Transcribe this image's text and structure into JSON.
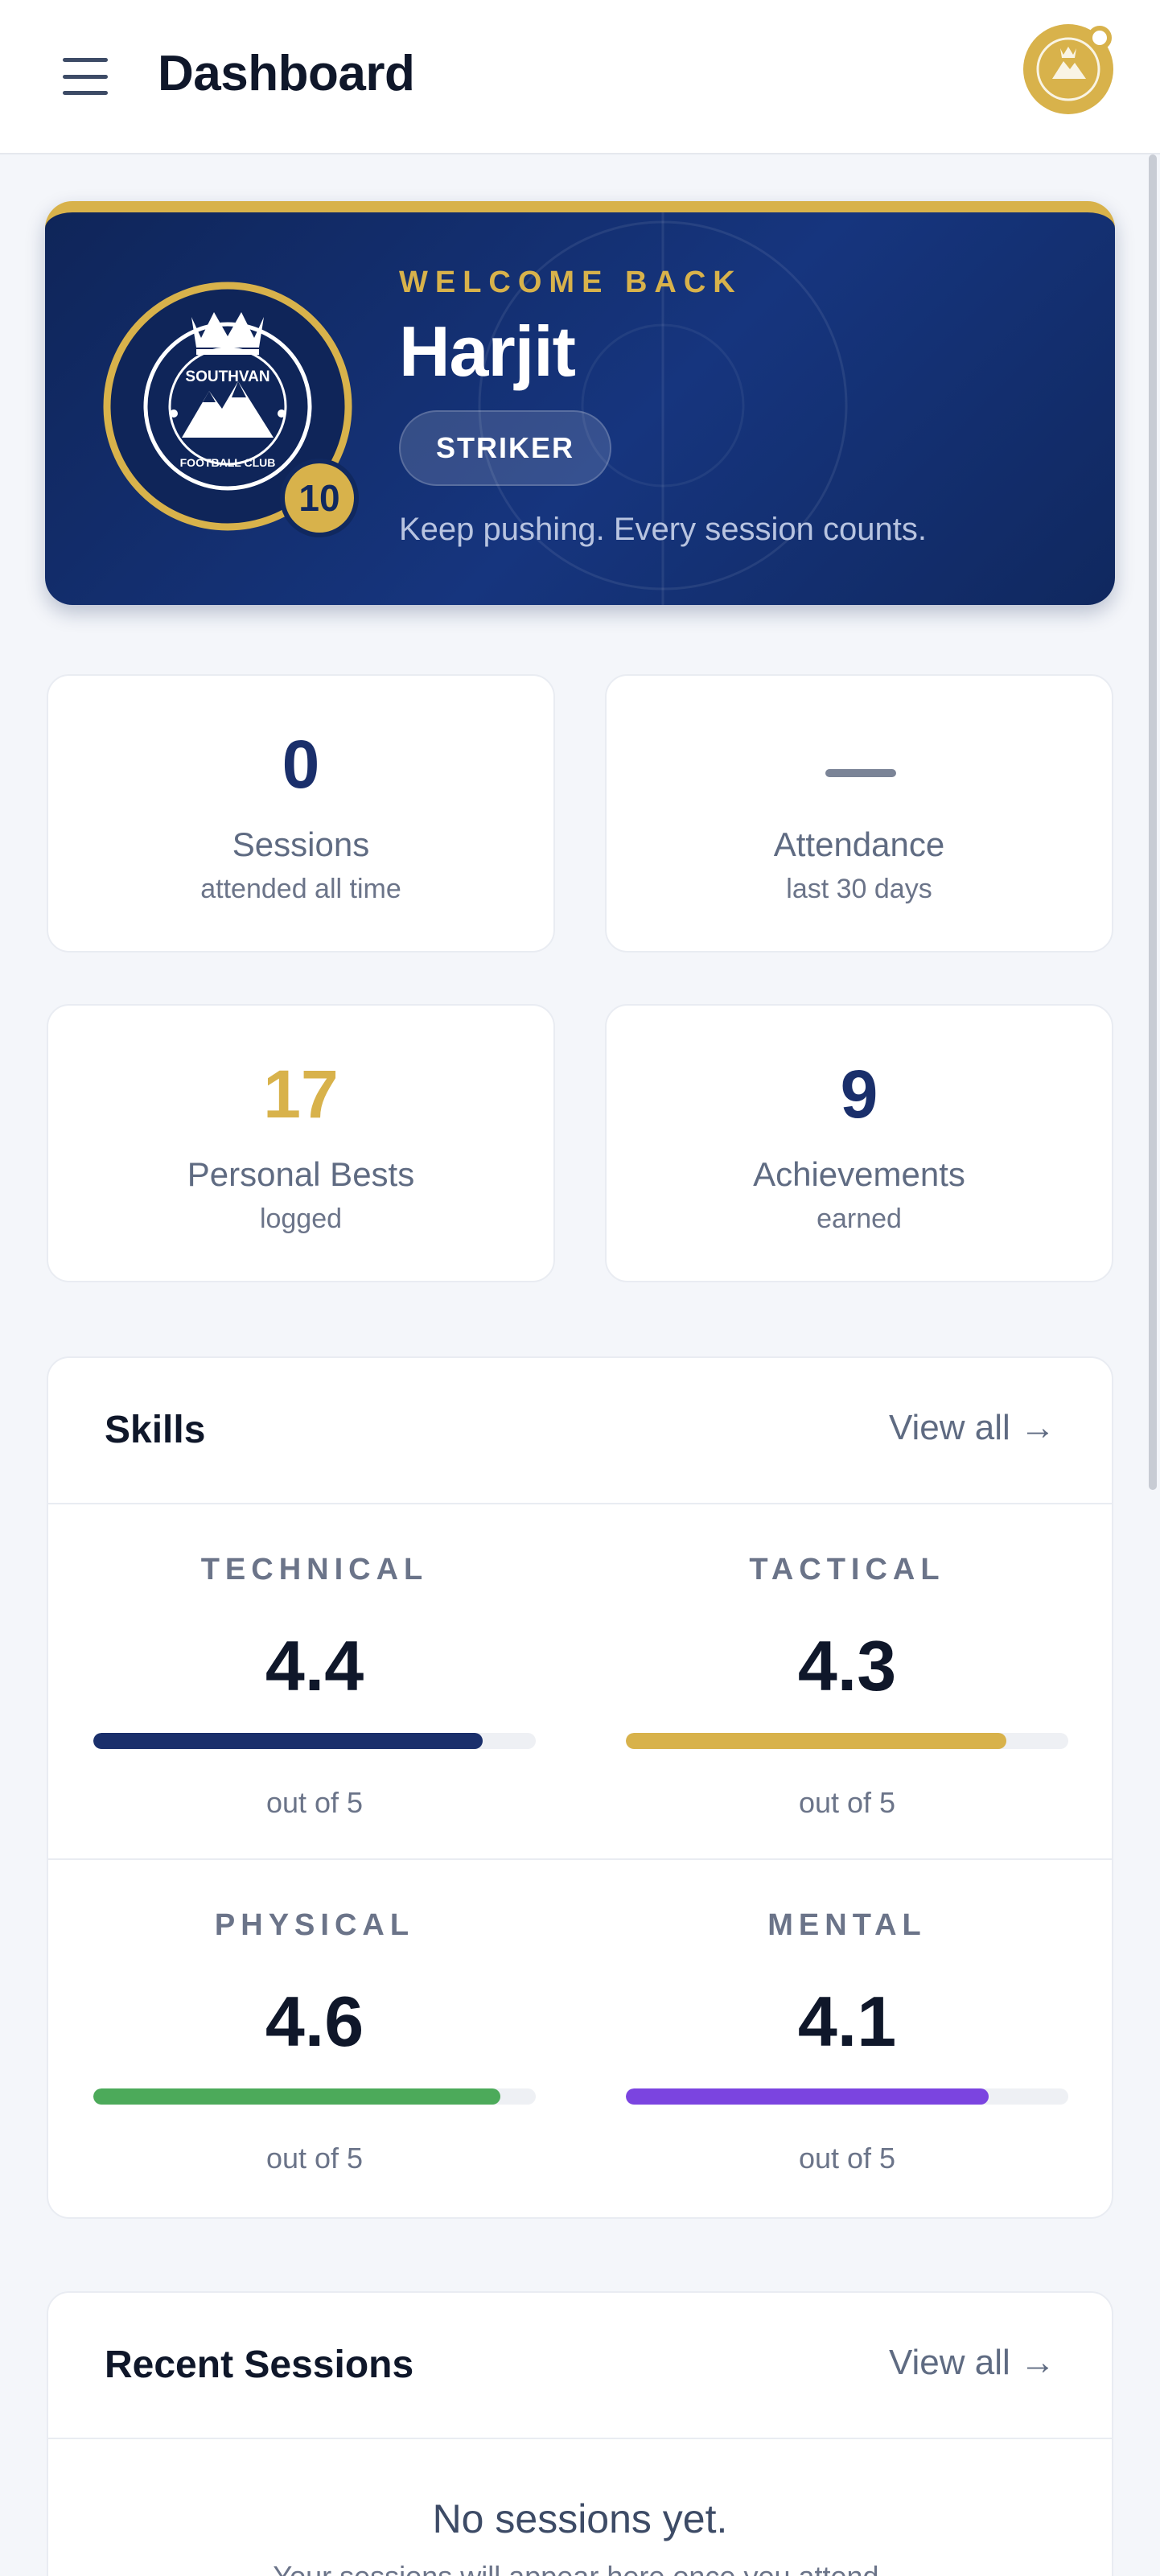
{
  "header": {
    "title": "Dashboard",
    "menu_icon": "hamburger-menu-icon",
    "avatar_icon": "club-crest-avatar-icon"
  },
  "hero": {
    "welcome": "WELCOME BACK",
    "name": "Harjit",
    "position": "STRIKER",
    "jersey_number": "10",
    "tagline": "Keep pushing. Every session counts.",
    "club_top": "SOUTHVAN",
    "club_bottom": "FOOTBALL CLUB"
  },
  "stats": [
    {
      "value": "0",
      "label": "Sessions",
      "sub": "attended all time"
    },
    {
      "value": "—",
      "label": "Attendance",
      "sub": "last 30 days"
    },
    {
      "value": "17",
      "label": "Personal Bests",
      "sub": "logged"
    },
    {
      "value": "9",
      "label": "Achievements",
      "sub": "earned"
    }
  ],
  "skills": {
    "title": "Skills",
    "view_all": "View all →",
    "max": 5,
    "items": [
      {
        "name": "TECHNICAL",
        "value": "4.4",
        "score": 4.4,
        "sub": "out of 5",
        "color": "#1a2f6b"
      },
      {
        "name": "TACTICAL",
        "value": "4.3",
        "score": 4.3,
        "sub": "out of 5",
        "color": "#d8b24b"
      },
      {
        "name": "PHYSICAL",
        "value": "4.6",
        "score": 4.6,
        "sub": "out of 5",
        "color": "#4caa5a"
      },
      {
        "name": "MENTAL",
        "value": "4.1",
        "score": 4.1,
        "sub": "out of 5",
        "color": "#7b44e0"
      }
    ]
  },
  "recent": {
    "title": "Recent Sessions",
    "view_all": "View all →",
    "empty_title": "No sessions yet.",
    "empty_sub": "Your sessions will appear here once you attend."
  },
  "colors": {
    "navy": "#1a2f6b",
    "gold": "#d8b24b"
  }
}
